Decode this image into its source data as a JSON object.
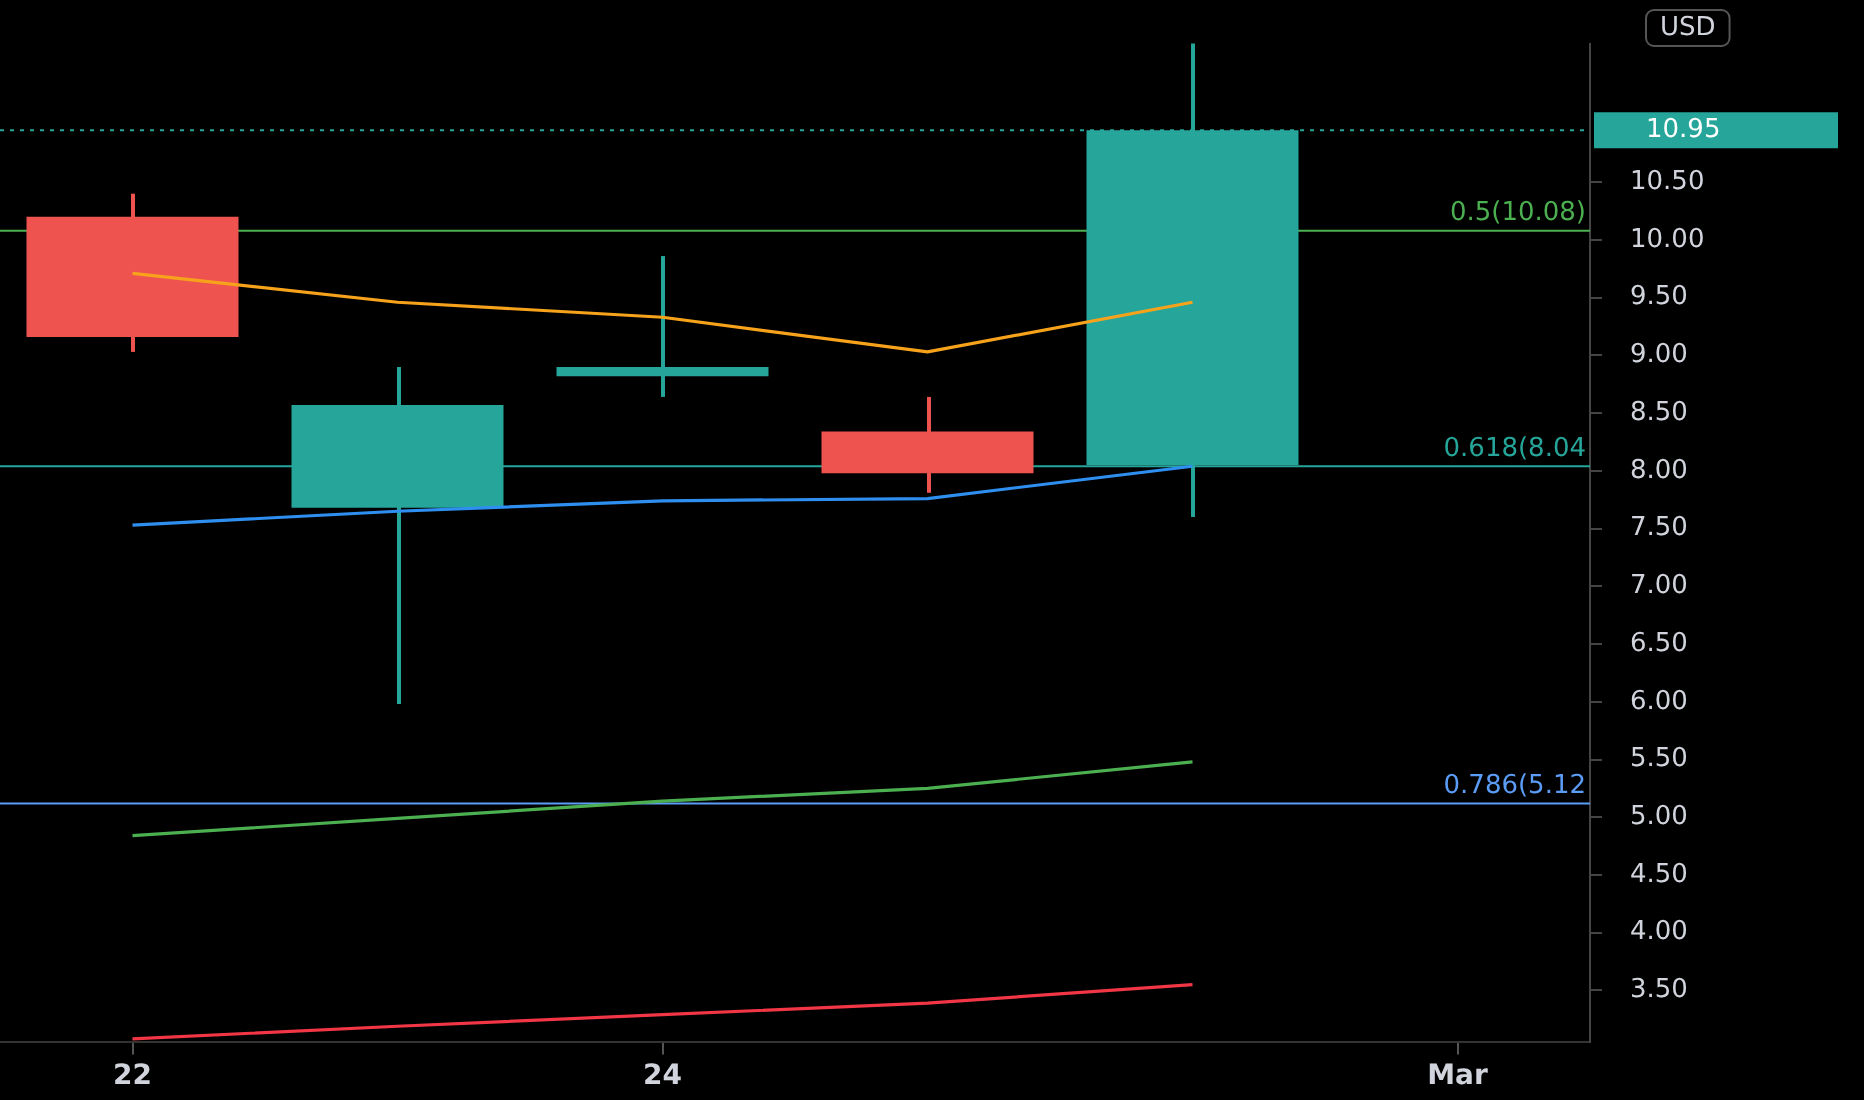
{
  "chart_data": {
    "type": "candlestick",
    "ylabel": "USD",
    "legend": false,
    "categories": [
      "22",
      null,
      "24",
      null,
      null,
      "Mar"
    ],
    "ohlc": [
      [
        10.2,
        10.4,
        9.03,
        9.16
      ],
      [
        7.68,
        8.9,
        5.98,
        8.57
      ],
      [
        8.82,
        9.86,
        8.64,
        8.9
      ],
      [
        8.34,
        8.64,
        7.81,
        7.98
      ],
      [
        8.05,
        11.7,
        7.6,
        10.95
      ],
      null
    ],
    "colors": [
      "#ef5350",
      "#26a69a",
      "#26a69a",
      "#ef5350",
      "#26a69a",
      null
    ],
    "series": [
      {
        "type": "line",
        "color": "#f7a21b",
        "values": [
          9.71,
          9.46,
          9.33,
          9.03,
          9.46,
          null
        ]
      },
      {
        "type": "line",
        "color": "#2f8ff0",
        "values": [
          7.53,
          7.65,
          7.74,
          7.76,
          8.04,
          null
        ]
      },
      {
        "type": "line",
        "color": "#4caf50",
        "values": [
          4.84,
          4.99,
          5.14,
          5.25,
          5.48,
          null
        ]
      },
      {
        "type": "line",
        "color": "#f23645",
        "values": [
          3.08,
          3.19,
          3.29,
          3.39,
          3.55,
          null
        ]
      }
    ],
    "ylim": [
      3.05,
      11.7
    ],
    "yticks": [
      {
        "value": 3.5,
        "label": "3.50"
      },
      {
        "value": 4,
        "label": "4.00"
      },
      {
        "value": 4.5,
        "label": "4.50"
      },
      {
        "value": 5,
        "label": "5.00"
      },
      {
        "value": 5.5,
        "label": "5.50"
      },
      {
        "value": 6,
        "label": "6.00"
      },
      {
        "value": 6.5,
        "label": "6.50"
      },
      {
        "value": 7,
        "label": "7.00"
      },
      {
        "value": 7.5,
        "label": "7.50"
      },
      {
        "value": 8,
        "label": "8.00"
      },
      {
        "value": 8.5,
        "label": "8.50"
      },
      {
        "value": 9,
        "label": "9.00"
      },
      {
        "value": 9.5,
        "label": "9.50"
      },
      {
        "value": 10,
        "label": "10.00"
      },
      {
        "value": 10.5,
        "label": "10.50"
      }
    ],
    "ref_lines": [
      {
        "axis": "y",
        "value": 10.08,
        "label": "0.5(10.08)",
        "color": "#4caf50"
      },
      {
        "axis": "y",
        "value": 8.04,
        "label": "0.618(8.04",
        "color": "#26a69a"
      },
      {
        "axis": "y",
        "value": 5.12,
        "label": "0.786(5.12",
        "color": "#5b9cf6"
      },
      {
        "axis": "y",
        "value": 10.95,
        "label": "10.95",
        "color": "#26a69a",
        "line_style": "dotted"
      }
    ]
  }
}
